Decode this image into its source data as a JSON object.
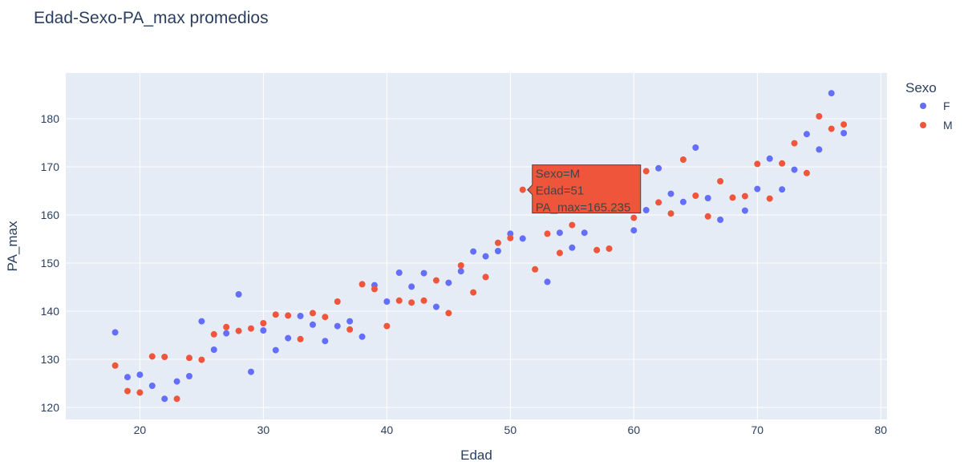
{
  "chart_data": {
    "type": "scatter",
    "title": "Edad-Sexo-PA_max promedios",
    "xlabel": "Edad",
    "ylabel": "PA_max",
    "xlim": [
      14,
      80.5
    ],
    "ylim": [
      117.5,
      189.5
    ],
    "xticks": [
      20,
      30,
      40,
      50,
      60,
      70,
      80
    ],
    "yticks": [
      120,
      130,
      140,
      150,
      160,
      170,
      180
    ],
    "grid": true,
    "legend": {
      "title": "Sexo",
      "position": "right"
    },
    "series": [
      {
        "name": "F",
        "color": "#636efa",
        "x": [
          18,
          19,
          20,
          21,
          22,
          23,
          24,
          25,
          26,
          27,
          28,
          29,
          30,
          31,
          32,
          33,
          34,
          35,
          36,
          37,
          38,
          39,
          40,
          41,
          42,
          43,
          44,
          45,
          46,
          47,
          48,
          49,
          50,
          51,
          53,
          54,
          55,
          56,
          60,
          61,
          62,
          63,
          64,
          65,
          66,
          67,
          69,
          70,
          71,
          72,
          73,
          74,
          75,
          76,
          77
        ],
        "y": [
          135.6,
          126.3,
          126.8,
          124.5,
          121.8,
          125.4,
          126.5,
          137.9,
          132.0,
          135.4,
          143.5,
          127.4,
          136.0,
          131.9,
          134.4,
          139.0,
          137.2,
          133.8,
          136.9,
          137.9,
          134.7,
          145.4,
          142.0,
          148.0,
          145.1,
          147.9,
          140.9,
          145.9,
          148.3,
          152.4,
          151.4,
          152.5,
          156.1,
          155.1,
          146.1,
          156.3,
          153.2,
          156.3,
          156.8,
          161.0,
          169.7,
          164.4,
          162.7,
          174.0,
          163.5,
          159.0,
          160.9,
          165.4,
          171.7,
          165.3,
          169.4,
          176.8,
          173.6,
          185.3,
          177.0
        ]
      },
      {
        "name": "M",
        "color": "#ef553b",
        "x": [
          18,
          19,
          20,
          21,
          22,
          23,
          24,
          25,
          26,
          27,
          28,
          29,
          30,
          31,
          32,
          33,
          34,
          35,
          36,
          37,
          38,
          39,
          40,
          41,
          42,
          43,
          44,
          45,
          46,
          47,
          48,
          49,
          50,
          51,
          52,
          53,
          54,
          55,
          57,
          58,
          60,
          61,
          62,
          63,
          64,
          65,
          66,
          67,
          68,
          69,
          70,
          71,
          72,
          73,
          74,
          75,
          76,
          77
        ],
        "y": [
          128.7,
          123.4,
          123.1,
          130.6,
          130.5,
          121.8,
          130.3,
          129.9,
          135.2,
          136.7,
          135.9,
          136.4,
          137.5,
          139.3,
          139.1,
          134.2,
          139.6,
          138.8,
          142.0,
          136.2,
          145.6,
          144.6,
          136.9,
          142.2,
          141.8,
          142.2,
          146.4,
          139.6,
          149.5,
          143.9,
          147.1,
          154.2,
          155.2,
          165.235,
          148.7,
          156.1,
          152.1,
          157.9,
          152.7,
          153.0,
          159.4,
          169.1,
          162.6,
          160.3,
          171.5,
          164.0,
          159.7,
          167.0,
          163.6,
          163.9,
          170.6,
          163.4,
          170.7,
          174.9,
          168.7,
          180.5,
          177.9,
          178.8
        ]
      }
    ],
    "hover": {
      "series": "M",
      "x": 51,
      "y": 165.235,
      "lines": [
        "Sexo=M",
        "Edad=51",
        "PA_max=165.235"
      ]
    }
  }
}
